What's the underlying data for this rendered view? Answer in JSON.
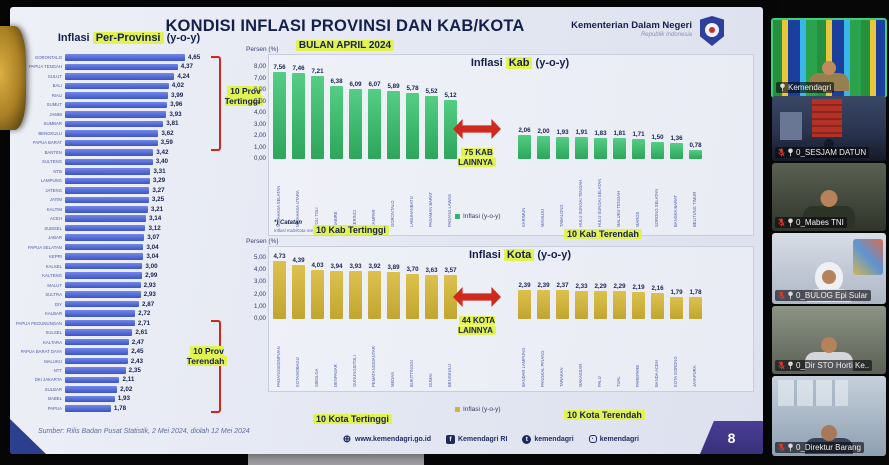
{
  "header": {
    "title": "KONDISI INFLASI PROVINSI DAN KAB/KOTA",
    "subtitle": "BULAN APRIL 2024",
    "ministry": "Kementerian Dalam Negeri",
    "ministry_sub": "Republik Indonesia"
  },
  "chart_data": [
    {
      "id": "provinsi",
      "type": "bar",
      "orientation": "horizontal",
      "title_pre": "Inflasi",
      "title_hl": "Per-Provinsi",
      "title_post": "(y-o-y)",
      "xlim": [
        0,
        4.8
      ],
      "bar_color": "#4b61d1",
      "high_label": "10 Prov Tertinggi",
      "low_label": "10 Prov Terendah",
      "categories": [
        "GORONTALO",
        "PAPUA TENGAH",
        "SULUT",
        "BALI",
        "RIAU",
        "SUMUT",
        "JAMBI",
        "SUMBAR",
        "BENGKULU",
        "PAPUA BARAT",
        "BANTEN",
        "SULTENG",
        "NTB",
        "LAMPUNG",
        "JATENG",
        "JATIM",
        "KALTIM",
        "ACEH",
        "SUMSEL",
        "JABAR",
        "PAPUA SELATAN",
        "KEPRI",
        "KALSEL",
        "KALTENG",
        "MALUT",
        "SULTRA",
        "DIY",
        "KALBAR",
        "PAPUA PEGUNUNGAN",
        "SULSEL",
        "KALTARA",
        "PAPUA BARAT DAYA",
        "MALUKU",
        "NTT",
        "DKI JAKARTA",
        "SULBAR",
        "BABEL",
        "PAPUA"
      ],
      "values": [
        4.65,
        4.37,
        4.24,
        4.02,
        3.99,
        3.96,
        3.93,
        3.81,
        3.62,
        3.59,
        3.42,
        3.4,
        3.31,
        3.29,
        3.27,
        3.25,
        3.21,
        3.14,
        3.12,
        3.07,
        3.04,
        3.04,
        3.0,
        2.99,
        2.93,
        2.93,
        2.87,
        2.72,
        2.71,
        2.61,
        2.47,
        2.45,
        2.43,
        2.35,
        2.11,
        2.02,
        1.93,
        1.78
      ]
    },
    {
      "id": "kab",
      "type": "bar",
      "title_pre": "Inflasi",
      "title_hl": "Kab",
      "title_post": "(y-o-y)",
      "axis_label": "Persen (%)",
      "ylim": [
        0,
        8
      ],
      "yticks": [
        "8,00",
        "7,00",
        "6,00",
        "5,00",
        "4,00",
        "3,00",
        "2,00",
        "1,00",
        "0,00"
      ],
      "bar_color": "#35b369",
      "legend": "Inflasi (y-o-y)",
      "gap_label": "75 KAB LAINNYA",
      "high_label": "10 Kab Tertinggi",
      "low_label": "10 Kab Terendah",
      "groups": [
        {
          "name": "10 Kab Tertinggi",
          "categories": [
            "MINAHASA SELATAN",
            "MINAHASA UTARA",
            "TOLI TOLI",
            "NABIRE",
            "KERINCI",
            "KAMPAR",
            "GORONTALO",
            "LABUHANBATU",
            "PASAMAN BARAT",
            "PADANG LAWAS"
          ],
          "values": [
            7.56,
            7.46,
            7.21,
            6.38,
            6.09,
            6.07,
            5.89,
            5.78,
            5.52,
            5.12
          ]
        },
        {
          "name": "10 Kab Terendah",
          "categories": [
            "KARIMUN",
            "MAMUJU",
            "TABALONG",
            "HULU SUNGAI TENGAH",
            "HULU SUNGAI SELATAN",
            "MALUKU TENGAH",
            "MAROS",
            "SORONG SELATAN",
            "BANGKA BARAT",
            "BELITUNG TIMUR"
          ],
          "values": [
            2.06,
            2.0,
            1.93,
            1.91,
            1.83,
            1.81,
            1.71,
            1.5,
            1.36,
            0.78
          ]
        }
      ]
    },
    {
      "id": "kota",
      "type": "bar",
      "title_pre": "Inflasi",
      "title_hl": "Kota",
      "title_post": "(y-o-y)",
      "axis_label": "Persen (%)",
      "ylim": [
        0,
        5
      ],
      "yticks": [
        "5,00",
        "4,00",
        "3,00",
        "2,00",
        "1,00",
        "0,00"
      ],
      "bar_color": "#d1b33e",
      "legend": "Inflasi (y-o-y)",
      "gap_label": "44 KOTA LAINNYA",
      "high_label": "10 Kota Tertinggi",
      "low_label": "10 Kota Terendah",
      "groups": [
        {
          "name": "10 Kota Tertinggi",
          "categories": [
            "PADANGSIDIMPUAN",
            "KOTAMOBAGU",
            "SIBOLGA",
            "DENPASAR",
            "GUNUNGSITOLI",
            "PEMATANGSIANTAR",
            "MEDAN",
            "BUKITTINGGI",
            "DUMAI",
            "BENGKULU"
          ],
          "values": [
            4.73,
            4.39,
            4.03,
            3.94,
            3.93,
            3.92,
            3.89,
            3.7,
            3.63,
            3.57
          ]
        },
        {
          "name": "10 Kota Terendah",
          "categories": [
            "BANDAR LAMPUNG",
            "PANGKAL PINANG",
            "TARAKAN",
            "MAKASSAR",
            "PALU",
            "TUAL",
            "PAREPARE",
            "BANDA ACEH",
            "KOTA SORONG",
            "JAYAPURA"
          ],
          "values": [
            2.39,
            2.39,
            2.37,
            2.33,
            2.29,
            2.29,
            2.19,
            2.16,
            1.79,
            1.78
          ]
        }
      ]
    }
  ],
  "catatan": {
    "star": "*) Catatan",
    "text": "Inflasi Kab/Kota merupakan sampel 150 Kab BPS"
  },
  "footer": {
    "source": "Sumber: Rilis Badan Pusat Statistik, 2 Mei 2024, diolah 12 Mei 2024",
    "links": [
      {
        "icon": "globe-icon",
        "label": "www.kemendagri.go.id"
      },
      {
        "icon": "facebook-icon",
        "label": "Kemendagri RI"
      },
      {
        "icon": "twitter-icon",
        "label": "kemendagri"
      },
      {
        "icon": "instagram-icon",
        "label": "kemendagri"
      }
    ],
    "page": "8"
  },
  "sidebar": {
    "participants": [
      {
        "name": "Kemendagri",
        "muted": false,
        "pinned": true,
        "active": true,
        "scene": "flags"
      },
      {
        "name": "0_SESJAM DATUN",
        "muted": true,
        "pinned": true,
        "active": false,
        "scene": "city"
      },
      {
        "name": "0_Mabes TNI",
        "muted": true,
        "pinned": true,
        "active": false,
        "scene": "tni"
      },
      {
        "name": "0_BULOG Epi Sular",
        "muted": true,
        "pinned": true,
        "active": false,
        "scene": "bulog"
      },
      {
        "name": "0_Dir STO Horti Ke..",
        "muted": true,
        "pinned": true,
        "active": false,
        "scene": "sto"
      },
      {
        "name": "0_Direktur Barang",
        "muted": true,
        "pinned": true,
        "active": false,
        "scene": "brg"
      }
    ]
  },
  "colors": {
    "highlight": "#e3f253",
    "accent_red": "#cf2a1e",
    "bar_blue": "#4b61d1",
    "bar_green": "#35b369",
    "bar_yellow": "#d1b33e",
    "navy": "#14204c",
    "footer_purple": "#463b92"
  }
}
